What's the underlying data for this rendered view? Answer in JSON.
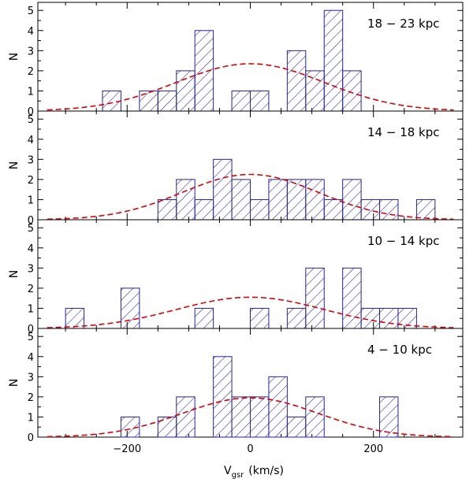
{
  "chart_data": {
    "type": "bar",
    "bin_width": 30,
    "x_axis": {
      "label_main": "V",
      "label_sub": "gsr",
      "label_unit": "(km/s)",
      "xlim": [
        -345,
        345
      ],
      "major_ticks": [
        -200,
        0,
        200
      ],
      "major_tick_labels": [
        "−200",
        "0",
        "200"
      ],
      "minor_step": 50
    },
    "y_axis": {
      "label": "N",
      "ylim": [
        0,
        5.4
      ],
      "tick_values": [
        0,
        1,
        2,
        3,
        4,
        5
      ],
      "tick_labels": [
        "0",
        "1",
        "2",
        "3",
        "4",
        "5"
      ]
    },
    "colors": {
      "bars": "#2222aa",
      "gauss": "#dd0000",
      "axes": "#000000"
    },
    "panels": [
      {
        "label": "18 − 23 kpc",
        "gauss_peak": 2.35,
        "gauss_sigma": 120,
        "bins": [
          {
            "left": -240,
            "count": 1
          },
          {
            "left": -180,
            "count": 1
          },
          {
            "left": -150,
            "count": 1
          },
          {
            "left": -120,
            "count": 2
          },
          {
            "left": -90,
            "count": 4
          },
          {
            "left": -30,
            "count": 1
          },
          {
            "left": 0,
            "count": 1
          },
          {
            "left": 60,
            "count": 3
          },
          {
            "left": 90,
            "count": 2
          },
          {
            "left": 120,
            "count": 5
          },
          {
            "left": 150,
            "count": 2
          }
        ]
      },
      {
        "label": "14 − 18 kpc",
        "gauss_peak": 2.25,
        "gauss_sigma": 110,
        "bins": [
          {
            "left": -150,
            "count": 1
          },
          {
            "left": -120,
            "count": 2
          },
          {
            "left": -90,
            "count": 1
          },
          {
            "left": -60,
            "count": 3
          },
          {
            "left": -30,
            "count": 2
          },
          {
            "left": 0,
            "count": 1
          },
          {
            "left": 30,
            "count": 2
          },
          {
            "left": 60,
            "count": 2
          },
          {
            "left": 90,
            "count": 2
          },
          {
            "left": 120,
            "count": 1
          },
          {
            "left": 150,
            "count": 2
          },
          {
            "left": 180,
            "count": 1
          },
          {
            "left": 210,
            "count": 1
          },
          {
            "left": 270,
            "count": 1
          }
        ]
      },
      {
        "label": "10 − 14 kpc",
        "gauss_peak": 1.55,
        "gauss_sigma": 120,
        "bins": [
          {
            "left": -300,
            "count": 1
          },
          {
            "left": -210,
            "count": 2
          },
          {
            "left": -90,
            "count": 1
          },
          {
            "left": 0,
            "count": 1
          },
          {
            "left": 60,
            "count": 1
          },
          {
            "left": 90,
            "count": 3
          },
          {
            "left": 150,
            "count": 3
          },
          {
            "left": 180,
            "count": 1
          },
          {
            "left": 210,
            "count": 1
          },
          {
            "left": 240,
            "count": 1
          }
        ]
      },
      {
        "label": "4 − 10 kpc",
        "gauss_peak": 1.95,
        "gauss_sigma": 110,
        "bins": [
          {
            "left": -210,
            "count": 1
          },
          {
            "left": -150,
            "count": 1
          },
          {
            "left": -120,
            "count": 2
          },
          {
            "left": -60,
            "count": 4
          },
          {
            "left": -30,
            "count": 2
          },
          {
            "left": 0,
            "count": 2
          },
          {
            "left": 30,
            "count": 3
          },
          {
            "left": 60,
            "count": 1
          },
          {
            "left": 90,
            "count": 2
          },
          {
            "left": 210,
            "count": 2
          }
        ]
      }
    ]
  }
}
